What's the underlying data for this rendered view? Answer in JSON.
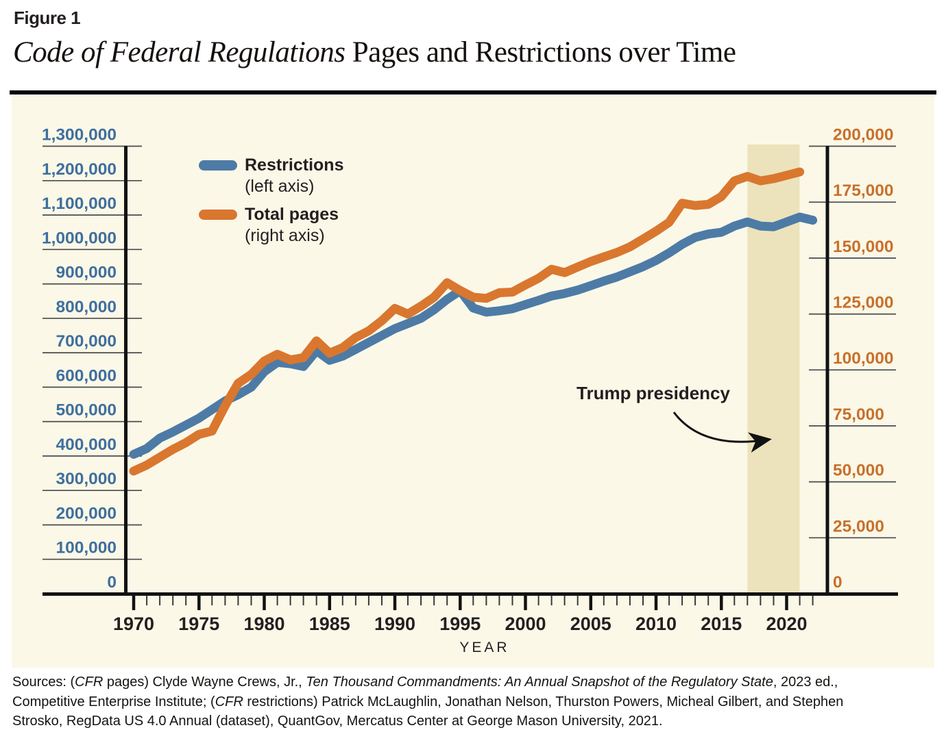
{
  "figure_label": "Figure 1",
  "title": {
    "italic": "Code of Federal Regulations",
    "regular": " Pages and Restrictions over Time"
  },
  "legend": {
    "items": [
      {
        "label": "Restrictions",
        "sublabel": "(left axis)",
        "color": "#4d7ba6"
      },
      {
        "label": "Total pages",
        "sublabel": "(right axis)",
        "color": "#d9772f"
      }
    ]
  },
  "annotation": {
    "label": "Trump presidency"
  },
  "chart_data": {
    "type": "line",
    "xlabel": "YEAR",
    "x_range_shown": [
      1970,
      2022
    ],
    "x_tick_labels": [
      "1970",
      "1975",
      "1980",
      "1985",
      "1990",
      "1995",
      "2000",
      "2005",
      "2010",
      "2015",
      "2020"
    ],
    "left_axis": {
      "title": "Restrictions",
      "color": "#3f6f9e",
      "min": 0,
      "max": 1300000,
      "step": 100000,
      "tick_labels": [
        "1,300,000",
        "1,200,000",
        "1,100,000",
        "1,000,000",
        "900,000",
        "800,000",
        "700,000",
        "600,000",
        "500,000",
        "400,000",
        "300,000",
        "200,000",
        "100,000",
        "0"
      ]
    },
    "right_axis": {
      "title": "Total pages",
      "color": "#c8702b",
      "min": 0,
      "max": 200000,
      "step": 25000,
      "tick_labels": [
        "200,000",
        "175,000",
        "150,000",
        "125,000",
        "100,000",
        "75,000",
        "50,000",
        "25,000",
        "0"
      ]
    },
    "series": [
      {
        "name": "Restrictions",
        "axis": "left",
        "color": "#4d7ba6",
        "start_year": 1970,
        "values": [
          405000,
          422000,
          452000,
          470000,
          490000,
          510000,
          535000,
          560000,
          578000,
          600000,
          645000,
          672000,
          668000,
          660000,
          706000,
          678000,
          690000,
          710000,
          730000,
          750000,
          770000,
          785000,
          800000,
          825000,
          855000,
          880000,
          830000,
          818000,
          822000,
          828000,
          840000,
          852000,
          865000,
          872000,
          882000,
          895000,
          908000,
          920000,
          935000,
          950000,
          968000,
          990000,
          1015000,
          1035000,
          1045000,
          1050000,
          1068000,
          1080000,
          1068000,
          1066000,
          1080000,
          1094000,
          1085000
        ]
      },
      {
        "name": "Total pages",
        "axis": "right",
        "color": "#d9772f",
        "start_year": 1970,
        "values": [
          54800,
          57500,
          61000,
          64500,
          67500,
          71200,
          72700,
          84000,
          94000,
          98000,
          104000,
          107000,
          104500,
          105500,
          113000,
          107500,
          110000,
          114500,
          117500,
          122000,
          127500,
          125000,
          128500,
          132500,
          139000,
          135500,
          132500,
          132000,
          134500,
          134800,
          138000,
          141000,
          145000,
          143500,
          146000,
          148500,
          150500,
          152500,
          155000,
          158500,
          162000,
          166000,
          174500,
          173500,
          174000,
          177500,
          184500,
          186500,
          184500,
          185500,
          187000,
          188500
        ]
      }
    ],
    "shaded_region": {
      "label": "Trump presidency",
      "x_start": 2017,
      "x_end": 2021,
      "color": "#ece3bc"
    },
    "plot_background": "#fbf8e8",
    "grid": "tick-stub-lines-only"
  },
  "source": {
    "lines": [
      [
        {
          "t": "Sources: (",
          "i": false
        },
        {
          "t": "CFR",
          "i": true
        },
        {
          "t": " pages) Clyde Wayne Crews, Jr., ",
          "i": false
        },
        {
          "t": "Ten Thousand Commandments: An Annual Snapshot of the Regulatory State",
          "i": true
        },
        {
          "t": ", 2023 ed.,",
          "i": false
        }
      ],
      [
        {
          "t": "Competitive Enterprise Institute; (",
          "i": false
        },
        {
          "t": "CFR",
          "i": true
        },
        {
          "t": " restrictions) Patrick McLaughlin, Jonathan Nelson, Thurston Powers, Micheal Gilbert, and Stephen",
          "i": false
        }
      ],
      [
        {
          "t": "Strosko, RegData US 4.0 Annual (dataset), QuantGov, Mercatus Center at George Mason University, 2021.",
          "i": false
        }
      ]
    ]
  }
}
